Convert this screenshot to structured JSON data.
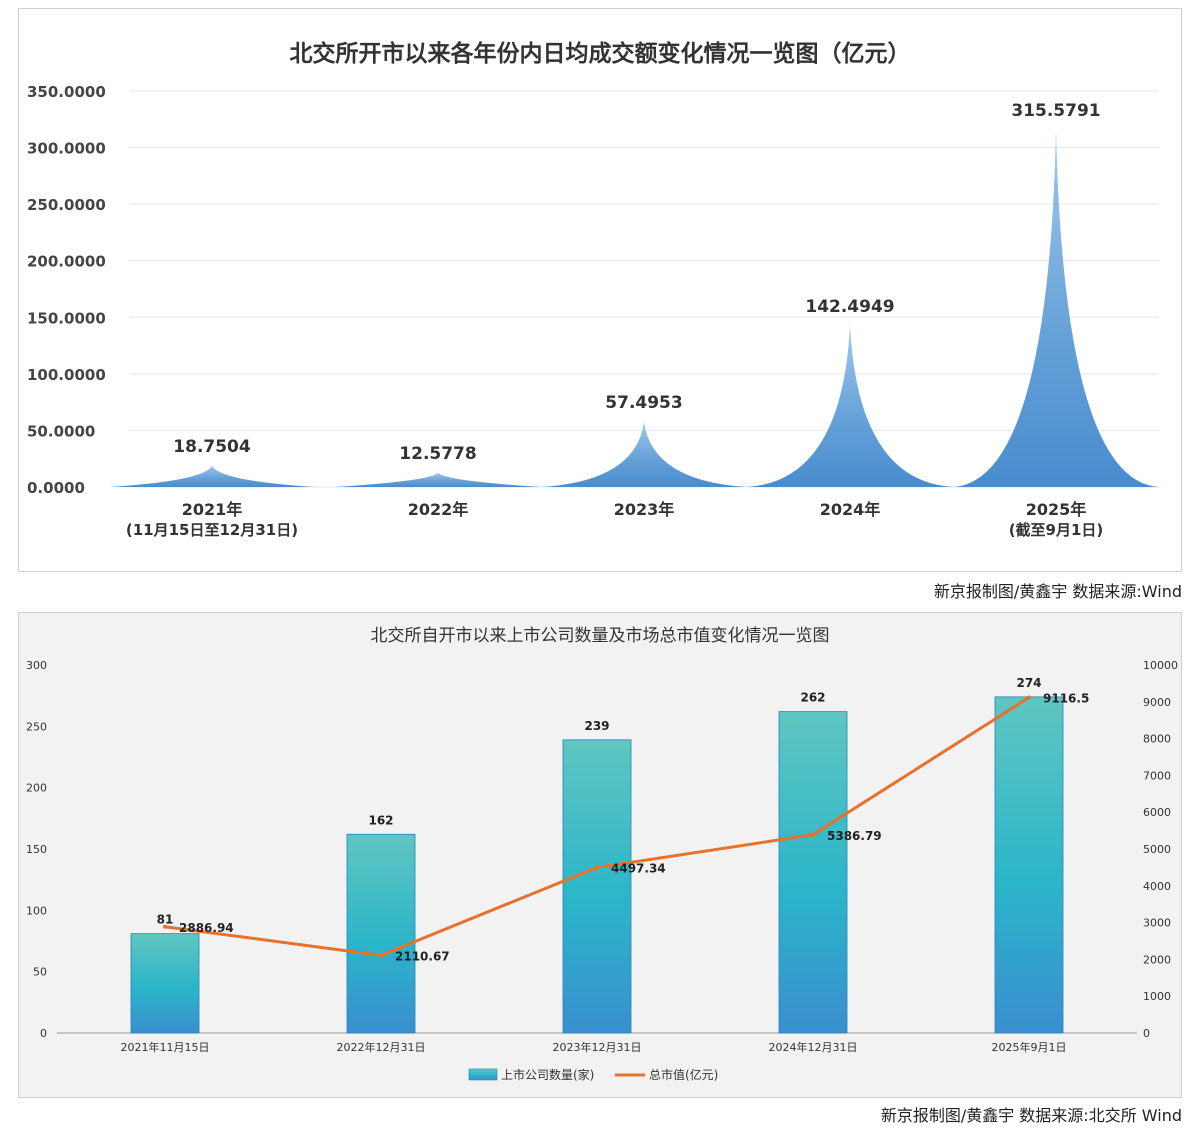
{
  "chart_data": [
    {
      "type": "area",
      "title": "北交所开市以来各年份内日均成交额变化情况一览图（亿元）",
      "categories": [
        "2021年",
        "2022年",
        "2023年",
        "2024年",
        "2025年"
      ],
      "category_notes": [
        "(11月15日至12月31日)",
        "",
        "",
        "",
        "(截至9月1日)"
      ],
      "values": [
        18.7504,
        12.5778,
        57.4953,
        142.4949,
        315.5791
      ],
      "value_labels": [
        "18.7504",
        "12.5778",
        "57.4953",
        "142.4949",
        "315.5791"
      ],
      "ylim": [
        0,
        350
      ],
      "yticks": [
        "0.0000",
        "50.0000",
        "100.0000",
        "150.0000",
        "200.0000",
        "250.0000",
        "300.0000",
        "350.0000"
      ],
      "grid": true,
      "color": "#5b9bd5"
    },
    {
      "type": "bar",
      "title": "北交所自开市以来上市公司数量及市场总市值变化情况一览图",
      "categories": [
        "2021年11月15日",
        "2022年12月31日",
        "2023年12月31日",
        "2024年12月31日",
        "2025年9月1日"
      ],
      "series": [
        {
          "name": "上市公司数量(家)",
          "type": "bar",
          "axis": "left",
          "values": [
            81,
            162,
            239,
            262,
            274
          ],
          "labels": [
            "81",
            "162",
            "239",
            "262",
            "274"
          ]
        },
        {
          "name": "总市值(亿元)",
          "type": "line",
          "axis": "right",
          "values": [
            2886.94,
            2110.67,
            4497.34,
            5386.79,
            9116.5
          ],
          "labels": [
            "2886.94",
            "2110.67",
            "4497.34",
            "5386.79",
            "9116.5"
          ]
        }
      ],
      "ylim_left": [
        0,
        300
      ],
      "yticks_left": [
        "0",
        "50",
        "100",
        "150",
        "200",
        "250",
        "300"
      ],
      "ylim_right": [
        0,
        10000
      ],
      "yticks_right": [
        "0",
        "1000",
        "2000",
        "3000",
        "4000",
        "5000",
        "6000",
        "7000",
        "8000",
        "9000",
        "10000"
      ],
      "legend_position": "bottom",
      "bar_color": "#2bb5c9",
      "line_color": "#e8702a"
    }
  ],
  "credits": {
    "top": "新京报制图/黄鑫宇  数据来源:Wind",
    "bottom": "新京报制图/黄鑫宇  数据来源:北交所  Wind"
  }
}
